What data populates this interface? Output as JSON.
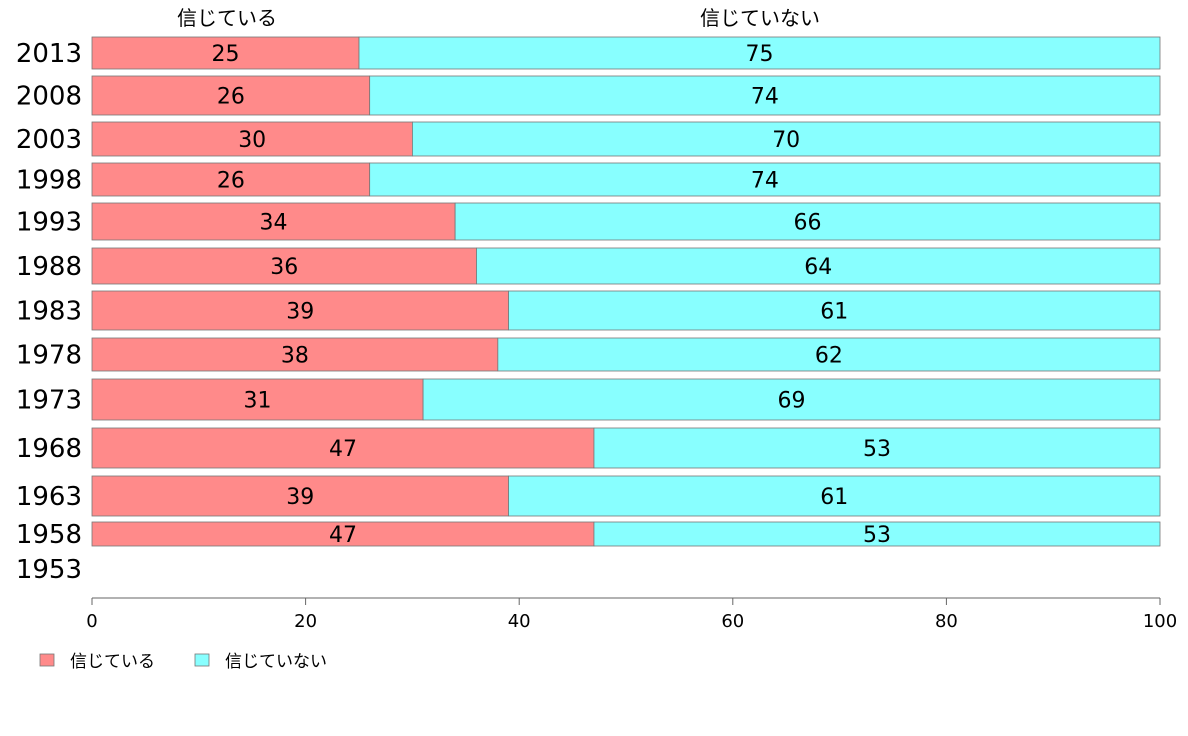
{
  "chart_data": {
    "type": "bar",
    "orientation": "horizontal",
    "stacked": true,
    "categories": [
      "2013",
      "2008",
      "2003",
      "1998",
      "1993",
      "1988",
      "1983",
      "1978",
      "1973",
      "1968",
      "1963",
      "1958",
      "1953"
    ],
    "series": [
      {
        "name": "信じている",
        "color": "#ff8a8a",
        "values": [
          25,
          26,
          30,
          26,
          34,
          36,
          39,
          38,
          31,
          47,
          39,
          47,
          null
        ]
      },
      {
        "name": "信じていない",
        "color": "#88ffff",
        "values": [
          75,
          74,
          70,
          74,
          66,
          64,
          61,
          62,
          69,
          53,
          61,
          53,
          null
        ]
      }
    ],
    "xlim": [
      0,
      100
    ],
    "xticks": [
      0,
      20,
      40,
      60,
      80,
      100
    ],
    "column_headers": [
      "信じている",
      "信じていない"
    ],
    "legend": {
      "position": "bottom-left",
      "entries": [
        "信じている",
        "信じていない"
      ]
    },
    "grid": false
  }
}
